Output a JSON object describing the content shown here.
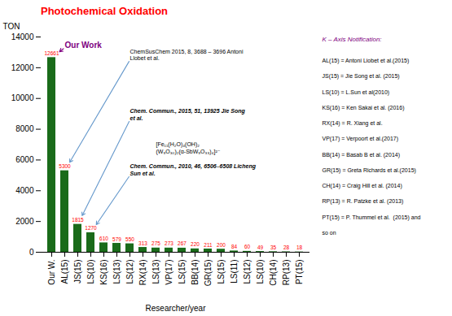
{
  "chart_data": {
    "type": "bar",
    "title": "Photochemical Oxidation",
    "title_color": "#ff0000",
    "xlabel": "Researcher/year",
    "ylabel": "TON",
    "categories": [
      "Our W.",
      "AL(15)",
      "JS(15)",
      "LS(10)",
      "KS(16)",
      "LS(13)",
      "LS(12)",
      "RX(14)",
      "LS(13)",
      "VP(17)",
      "LS(15)",
      "BB(14)",
      "GR(15)",
      "LS(15)",
      "LS(11)",
      "LS(12)",
      "LS(10)",
      "CH(14)",
      "RP(13)",
      "PT(15)"
    ],
    "values": [
      12661,
      5300,
      1815,
      1270,
      610,
      579,
      550,
      313,
      275,
      273,
      267,
      220,
      211,
      200,
      84,
      60,
      49,
      35,
      28,
      18
    ],
    "color": "#1a6b1a",
    "data_labels": true,
    "label_color": "#ff0000",
    "ylim": [
      0,
      14000
    ],
    "yticks": [
      0,
      2000,
      4000,
      6000,
      8000,
      10000,
      12000,
      14000
    ],
    "grid": false,
    "annotations": [
      {
        "text": "Our Work",
        "color": "#800080"
      },
      {
        "text": "ChemSusChem 2015, 8, 3688 – 3696 Antoni\nLlobet et al.",
        "arrow_color": "#6699cc"
      },
      {
        "text": "Chem. Commun., 2015, 51, 13925 Jie Song\net al.",
        "arrow_color": "#6699cc"
      },
      {
        "text": "Chem. Commun., 2010, 46, 6506–6508 Licheng\nSun et al.",
        "arrow_color": "#6699cc"
      },
      {
        "text": "[Fe₁₁(H₂O)₄(OH)₂\n(W₉O₃₀)₂(α-SbW₉O₃₃)₄]²⁻"
      }
    ],
    "notes": {
      "title": "K – Axis Notification:",
      "color": "purple",
      "lines": [
        "AL(15) = Antoni Liobet et al.(2015)",
        "JS(15) = Jie Song et al. (2015)",
        "LS(10) = L.Sun et al(2010)",
        "KS(16) = Ken Sakai et al. (2016)",
        "RX(14) = R. Xiang et al.",
        "VP(17) = Verpoort et al.(2017)",
        "BB(14) = Basab B et al. (2014)",
        "GR(15) = Greta Richards et al.(2015)",
        "CH(14) = Craig Hill et al. (2014)",
        "RP(13) = R. Patzke et al. (2013)",
        "PT(15) = P. Thummel et al.  (2015) and",
        "so on"
      ]
    }
  }
}
